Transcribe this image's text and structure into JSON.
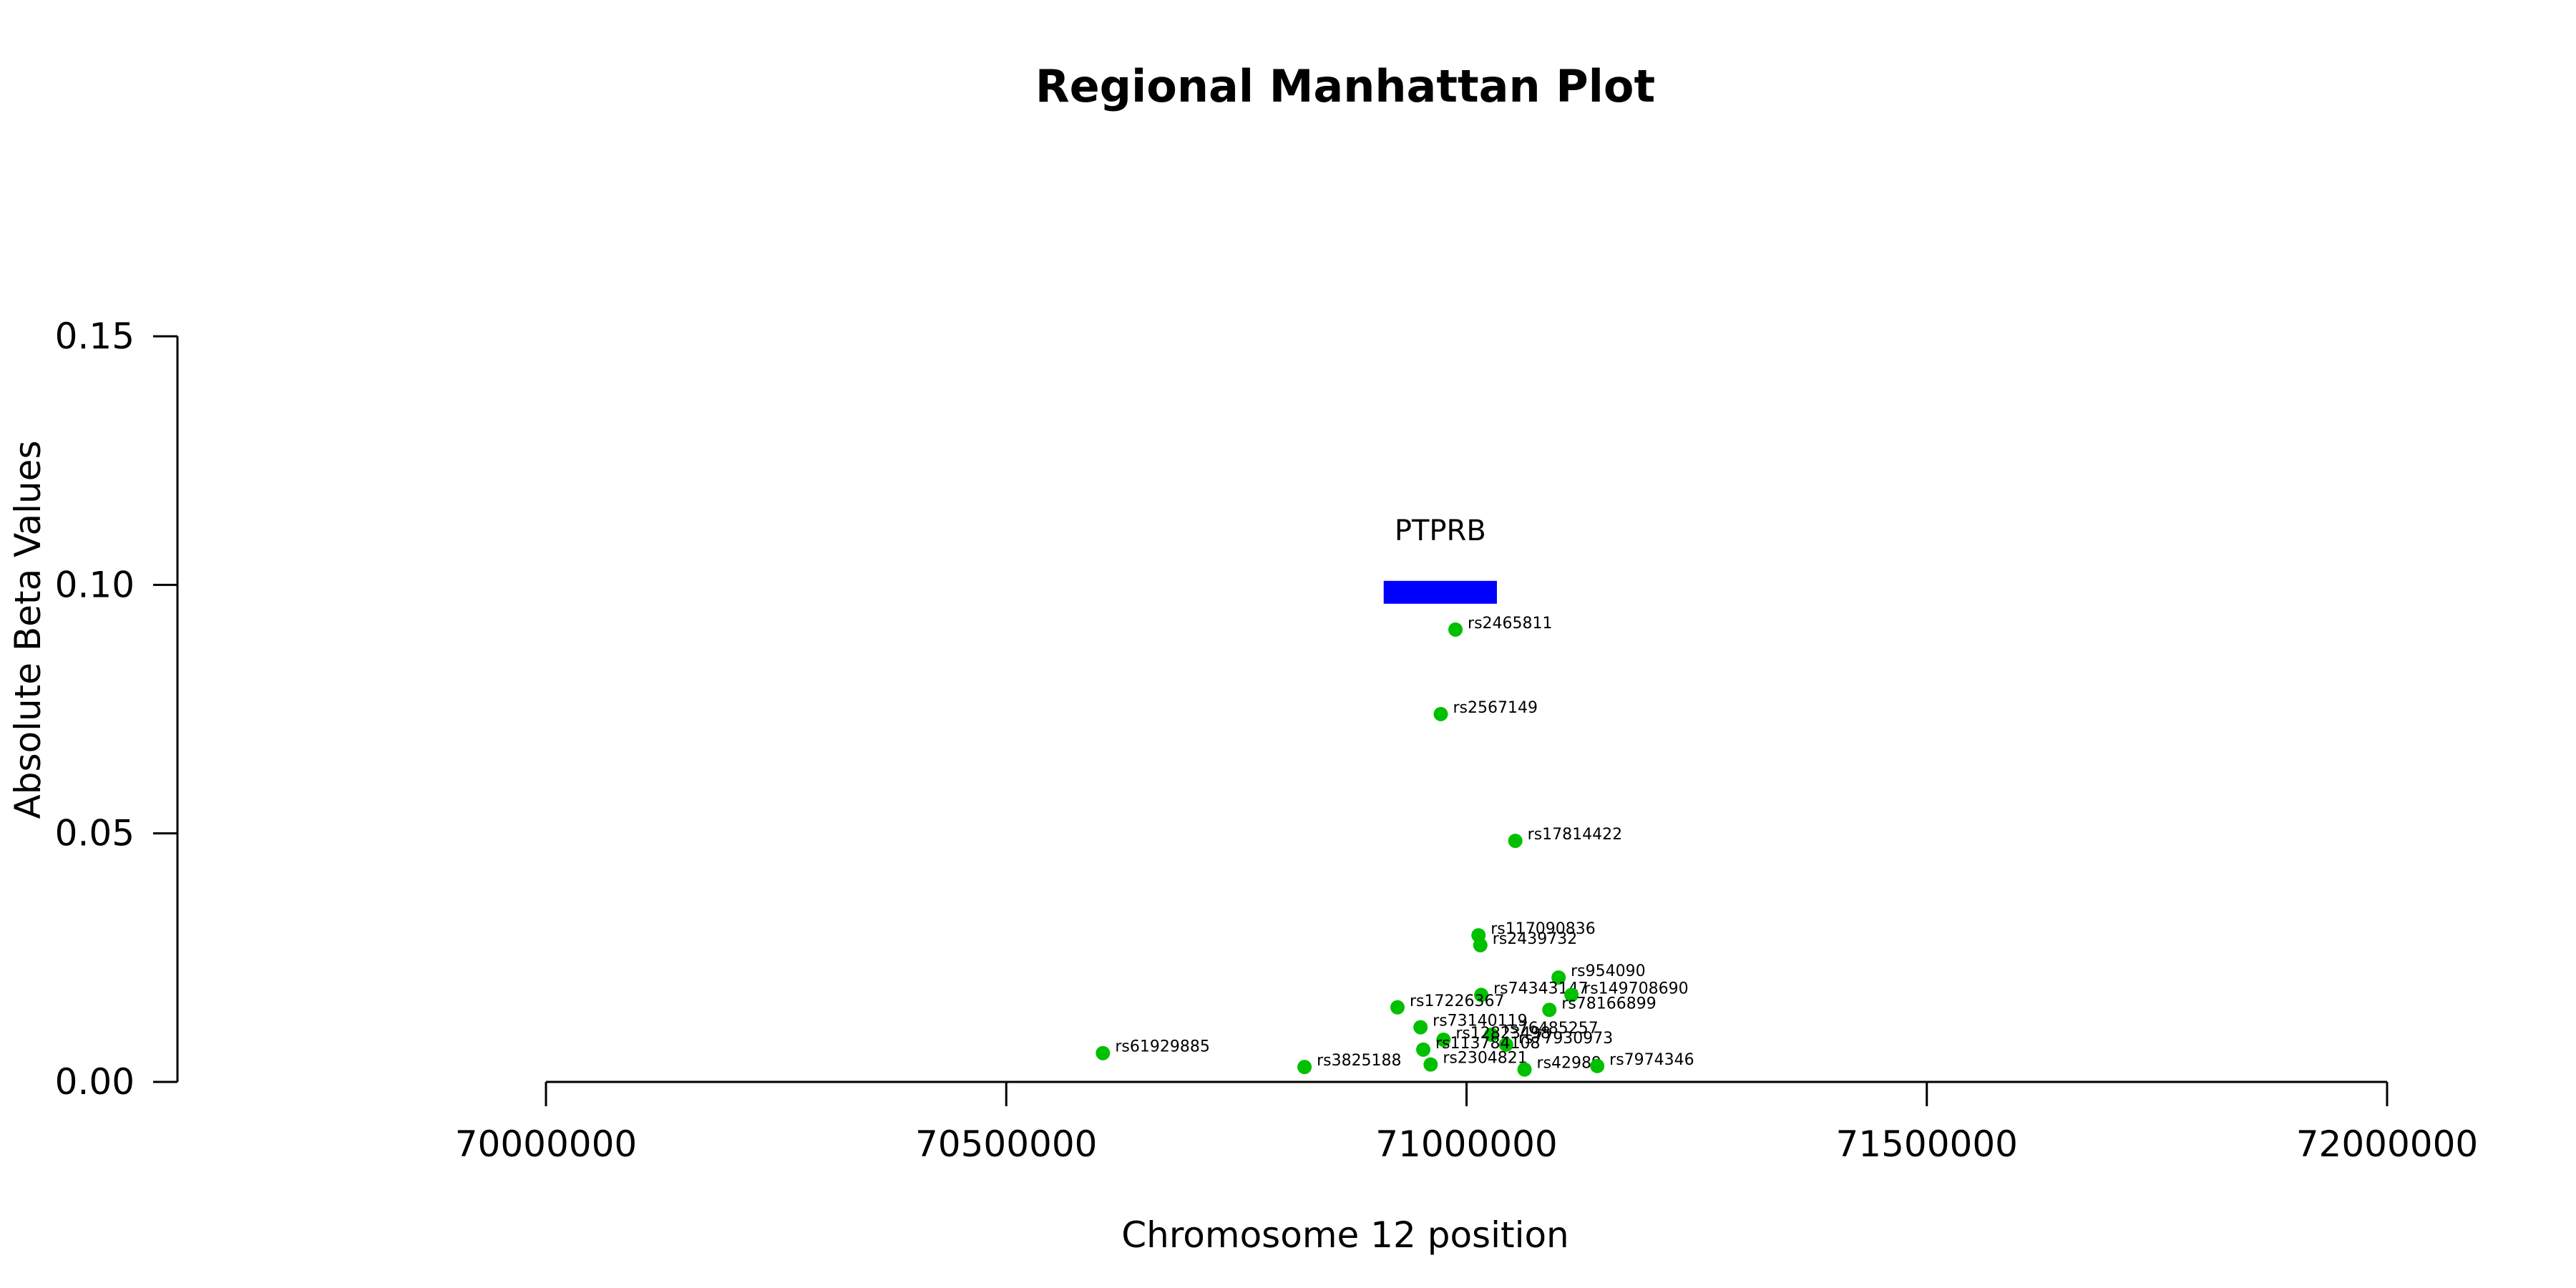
{
  "chart_data": {
    "type": "scatter",
    "title": "Regional Manhattan Plot",
    "xlabel": "Chromosome 12 position",
    "ylabel": "Absolute Beta Values",
    "xlim": [
      70000000,
      72000000
    ],
    "ylim": [
      0,
      0.15
    ],
    "x_ticks": [
      70000000,
      70500000,
      71000000,
      71500000,
      72000000
    ],
    "x_tick_labels": [
      "70000000",
      "70500000",
      "71000000",
      "71500000",
      "72000000"
    ],
    "y_ticks": [
      0.0,
      0.05,
      0.1,
      0.15
    ],
    "y_tick_labels": [
      "0.00",
      "0.05",
      "0.10",
      "0.15"
    ],
    "grid": false,
    "point_color": "#00c000",
    "gene": {
      "name": "PTPRB",
      "start": 70910000,
      "end": 71033000,
      "y": 0.0985,
      "color": "#0000ff"
    },
    "points": [
      {
        "label": "rs2465811",
        "x": 70988000,
        "y": 0.091
      },
      {
        "label": "rs2567149",
        "x": 70972000,
        "y": 0.074
      },
      {
        "label": "rs17814422",
        "x": 71053000,
        "y": 0.0485
      },
      {
        "label": "rs117090836",
        "x": 71013000,
        "y": 0.0295
      },
      {
        "label": "rs2439732",
        "x": 71015000,
        "y": 0.0275
      },
      {
        "label": "rs954090",
        "x": 71100000,
        "y": 0.021
      },
      {
        "label": "rs74343147",
        "x": 71016000,
        "y": 0.0175
      },
      {
        "label": "rs149708690",
        "x": 71114000,
        "y": 0.0175
      },
      {
        "label": "rs78166899",
        "x": 71090000,
        "y": 0.0145
      },
      {
        "label": "rs17226367",
        "x": 70925000,
        "y": 0.015
      },
      {
        "label": "rs73140119",
        "x": 70950000,
        "y": 0.011
      },
      {
        "label": "rs76485257",
        "x": 71027000,
        "y": 0.0095
      },
      {
        "label": "rs12823498",
        "x": 70975000,
        "y": 0.0085
      },
      {
        "label": "rs77930973",
        "x": 71043000,
        "y": 0.0075
      },
      {
        "label": "rs113784108",
        "x": 70953000,
        "y": 0.0065
      },
      {
        "label": "rs61929885",
        "x": 70605000,
        "y": 0.0058
      },
      {
        "label": "rs2304821",
        "x": 70961000,
        "y": 0.0035
      },
      {
        "label": "rs3825188",
        "x": 70824000,
        "y": 0.003
      },
      {
        "label": "rs42989",
        "x": 71063000,
        "y": 0.0025
      },
      {
        "label": "rs7974346",
        "x": 71142000,
        "y": 0.0032
      }
    ]
  }
}
